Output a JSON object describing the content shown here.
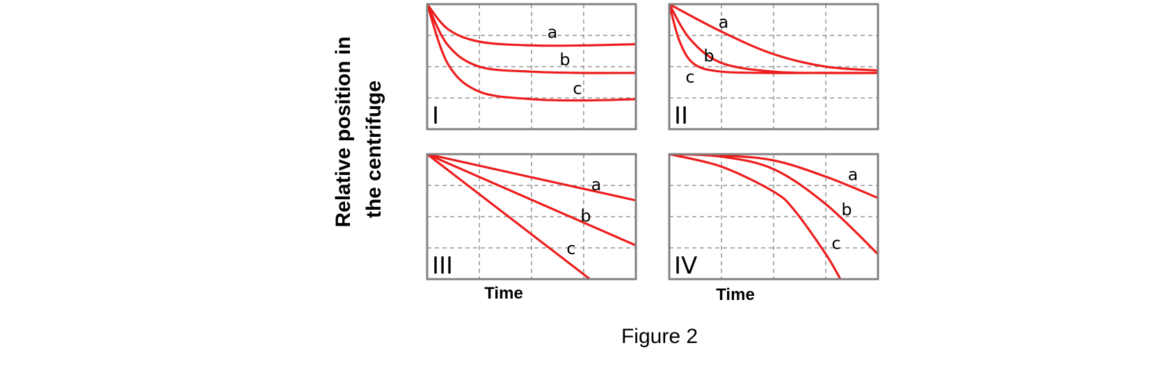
{
  "figure": {
    "caption": "Figure 2",
    "ylabel_line1": "Relative position in",
    "ylabel_line2": "the centrifuge",
    "xlabel_left": "Time",
    "xlabel_right": "Time"
  },
  "chart_data": [
    {
      "type": "line",
      "panel": "I",
      "xlabel": "Time",
      "ylabel": "Relative position in the centrifuge",
      "grid": true,
      "xlim": [
        0,
        1
      ],
      "ylim": [
        0,
        1
      ],
      "series": [
        {
          "name": "a",
          "x": [
            0,
            0.1,
            0.25,
            0.5,
            0.75,
            1.0
          ],
          "y": [
            1.0,
            0.8,
            0.7,
            0.67,
            0.67,
            0.68
          ],
          "label_at": [
            0.6,
            0.77
          ]
        },
        {
          "name": "b",
          "x": [
            0,
            0.1,
            0.25,
            0.5,
            0.75,
            1.0
          ],
          "y": [
            1.0,
            0.67,
            0.5,
            0.46,
            0.45,
            0.45
          ],
          "label_at": [
            0.66,
            0.55
          ]
        },
        {
          "name": "c",
          "x": [
            0,
            0.1,
            0.25,
            0.5,
            0.75,
            1.0
          ],
          "y": [
            1.0,
            0.52,
            0.3,
            0.24,
            0.23,
            0.24
          ],
          "label_at": [
            0.72,
            0.32
          ]
        }
      ]
    },
    {
      "type": "line",
      "panel": "II",
      "xlabel": "Time",
      "ylabel": "Relative position in the centrifuge",
      "grid": true,
      "xlim": [
        0,
        1
      ],
      "ylim": [
        0,
        1
      ],
      "series": [
        {
          "name": "a",
          "x": [
            0,
            0.25,
            0.5,
            0.75,
            1.0
          ],
          "y": [
            1.0,
            0.78,
            0.6,
            0.5,
            0.47
          ],
          "label_at": [
            0.26,
            0.85
          ]
        },
        {
          "name": "b",
          "x": [
            0,
            0.1,
            0.25,
            0.5,
            0.75,
            1.0
          ],
          "y": [
            1.0,
            0.72,
            0.53,
            0.46,
            0.45,
            0.45
          ],
          "label_at": [
            0.19,
            0.58
          ]
        },
        {
          "name": "c",
          "x": [
            0,
            0.05,
            0.12,
            0.25,
            0.5,
            0.75,
            1.0
          ],
          "y": [
            1.0,
            0.7,
            0.52,
            0.46,
            0.45,
            0.45,
            0.45
          ],
          "label_at": [
            0.1,
            0.41
          ]
        }
      ]
    },
    {
      "type": "line",
      "panel": "III",
      "xlabel": "Time",
      "ylabel": "Relative position in the centrifuge",
      "grid": true,
      "xlim": [
        0,
        1
      ],
      "ylim": [
        0,
        1
      ],
      "series": [
        {
          "name": "a",
          "x": [
            0,
            1.0
          ],
          "y": [
            1.0,
            0.63
          ],
          "label_at": [
            0.81,
            0.75
          ]
        },
        {
          "name": "b",
          "x": [
            0,
            1.0
          ],
          "y": [
            1.0,
            0.27
          ],
          "label_at": [
            0.76,
            0.5
          ]
        },
        {
          "name": "c",
          "x": [
            0,
            0.78
          ],
          "y": [
            1.0,
            0.0
          ],
          "label_at": [
            0.69,
            0.24
          ]
        }
      ]
    },
    {
      "type": "line",
      "panel": "IV",
      "xlabel": "Time",
      "ylabel": "Relative position in the centrifuge",
      "grid": true,
      "xlim": [
        0,
        1
      ],
      "ylim": [
        0,
        1
      ],
      "series": [
        {
          "name": "a",
          "x": [
            0,
            0.25,
            0.5,
            0.75,
            1.0
          ],
          "y": [
            1.0,
            0.99,
            0.95,
            0.82,
            0.65
          ],
          "label_at": [
            0.88,
            0.83
          ]
        },
        {
          "name": "b",
          "x": [
            0,
            0.25,
            0.5,
            0.75,
            1.0
          ],
          "y": [
            1.0,
            0.98,
            0.88,
            0.6,
            0.2
          ],
          "label_at": [
            0.85,
            0.55
          ]
        },
        {
          "name": "c",
          "x": [
            0,
            0.25,
            0.5,
            0.6,
            0.75,
            0.82
          ],
          "y": [
            1.0,
            0.9,
            0.7,
            0.55,
            0.2,
            0.0
          ],
          "label_at": [
            0.8,
            0.28
          ]
        }
      ]
    }
  ]
}
